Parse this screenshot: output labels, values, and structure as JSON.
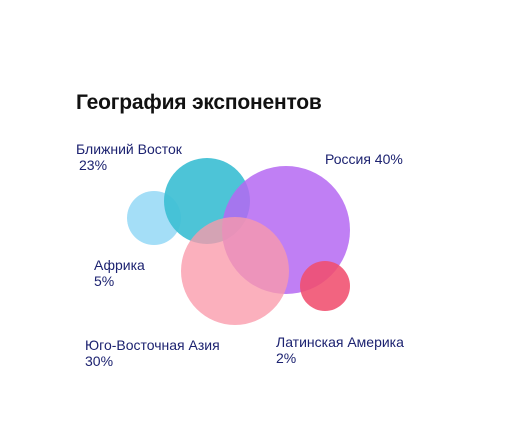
{
  "chart_data": {
    "type": "bubble",
    "title": "География экспонентов",
    "series": [
      {
        "category": "Россия",
        "label": "Россия 40%",
        "value": 40,
        "color": "#b569f2"
      },
      {
        "category": "Ближний Восток",
        "label": "Ближний Восток",
        "value_label": "23%",
        "value": 23,
        "color": "#3ebfd4"
      },
      {
        "category": "Юго-Восточная Азия",
        "label": "Юго-Восточная Азия",
        "value_label": "30%",
        "value": 30,
        "color": "#fa9aab"
      },
      {
        "category": "Африка",
        "label": "Африка",
        "value_label": "5%",
        "value": 5,
        "color": "#9fdcf7"
      },
      {
        "category": "Латинская Америка",
        "label": "Латинская Америка",
        "value_label": "2%",
        "value": 2,
        "color": "#f04f6e"
      }
    ]
  }
}
